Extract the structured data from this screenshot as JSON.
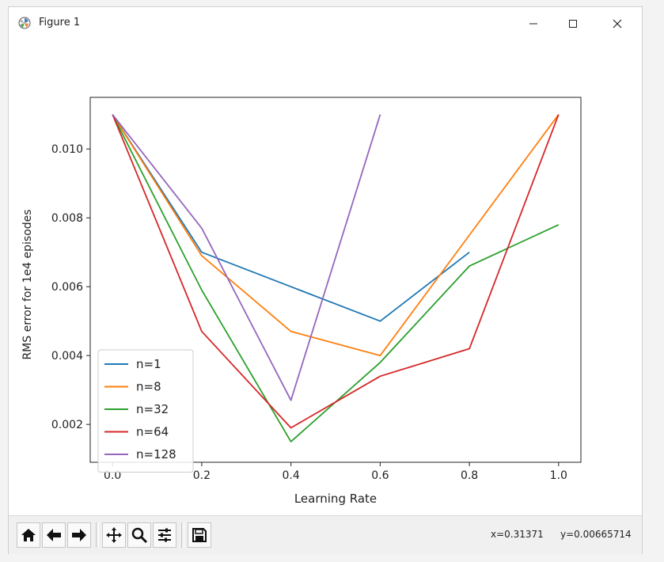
{
  "window": {
    "title": "Figure 1"
  },
  "toolbar": {
    "buttons": [
      "home-icon",
      "back-icon",
      "forward-icon",
      "pan-icon",
      "zoom-icon",
      "configure-icon",
      "save-icon"
    ],
    "x_readout": "x=0.31371",
    "y_readout": "y=0.00665714"
  },
  "chart_data": {
    "type": "line",
    "title": "",
    "xlabel": "Learning Rate",
    "ylabel": "RMS error for 1e4 episodes",
    "xlim": [
      -0.05,
      1.05
    ],
    "ylim": [
      0.0009,
      0.0115
    ],
    "xticks": [
      0.0,
      0.2,
      0.4,
      0.6,
      0.8,
      1.0
    ],
    "xtick_labels": [
      "0.0",
      "0.2",
      "0.4",
      "0.6",
      "0.8",
      "1.0"
    ],
    "yticks": [
      0.002,
      0.004,
      0.006,
      0.008,
      0.01
    ],
    "ytick_labels": [
      "0.002",
      "0.004",
      "0.006",
      "0.008",
      "0.010"
    ],
    "grid": false,
    "legend": "lower-left",
    "series": [
      {
        "name": "n=1",
        "color": "#1f77b4",
        "x": [
          0.0,
          0.2,
          0.4,
          0.6,
          0.8
        ],
        "y": [
          0.011,
          0.007,
          0.006,
          0.005,
          0.007
        ]
      },
      {
        "name": "n=8",
        "color": "#ff7f0e",
        "x": [
          0.0,
          0.2,
          0.4,
          0.6,
          0.8,
          1.0
        ],
        "y": [
          0.011,
          0.0069,
          0.0047,
          0.004,
          0.0075,
          0.011
        ]
      },
      {
        "name": "n=32",
        "color": "#2ca02c",
        "x": [
          0.0,
          0.2,
          0.4,
          0.6,
          0.8,
          1.0
        ],
        "y": [
          0.011,
          0.0059,
          0.0015,
          0.0038,
          0.0066,
          0.0078
        ]
      },
      {
        "name": "n=64",
        "color": "#d62728",
        "x": [
          0.0,
          0.2,
          0.4,
          0.6,
          0.8,
          1.0
        ],
        "y": [
          0.011,
          0.0047,
          0.0019,
          0.0034,
          0.0042,
          0.011
        ]
      },
      {
        "name": "n=128",
        "color": "#9467bd",
        "x": [
          0.0,
          0.2,
          0.4,
          0.6
        ],
        "y": [
          0.011,
          0.0077,
          0.0027,
          0.011
        ]
      }
    ]
  }
}
